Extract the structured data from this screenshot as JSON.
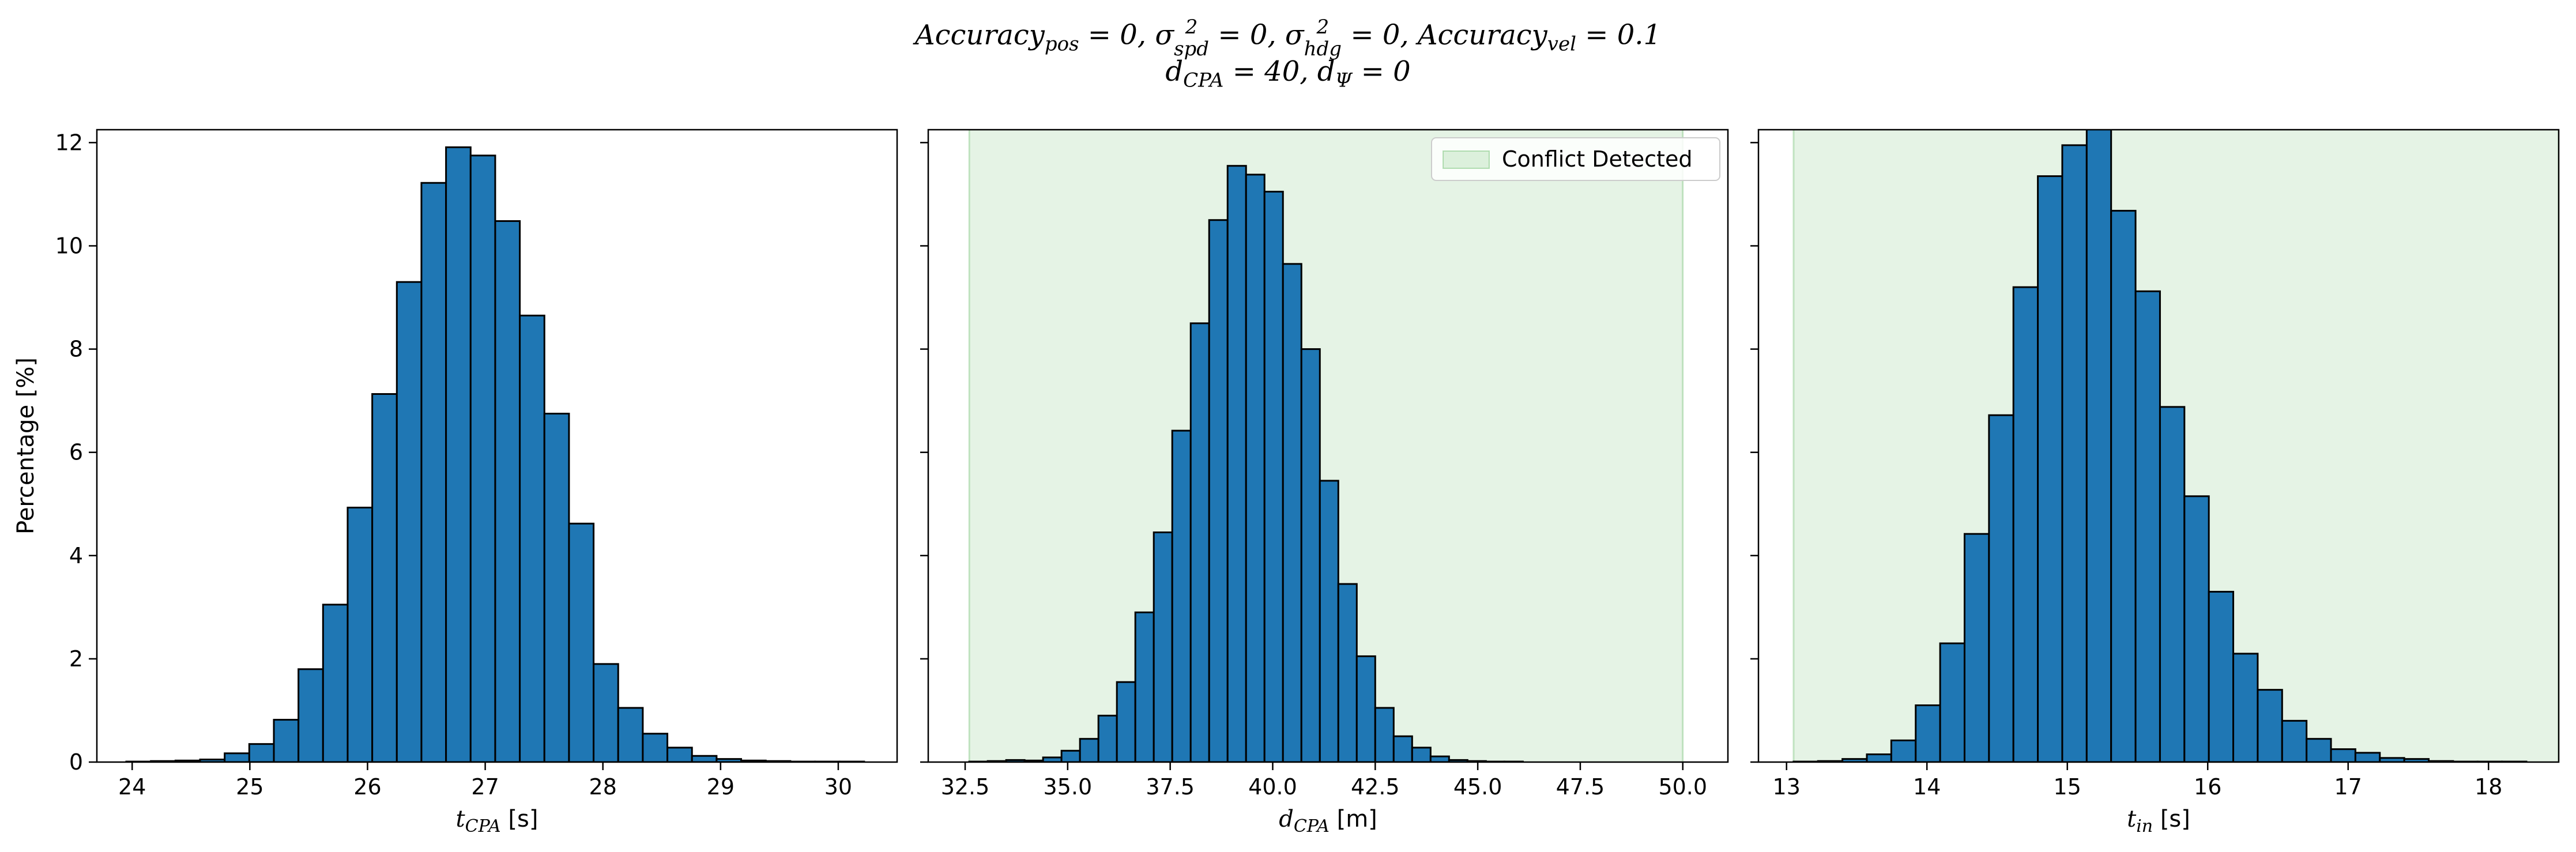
{
  "title_lines": [
    "Accuracy_pos = 0, σ²_spd = 0, σ²_hdg = 0, Accuracy_vel = 0.1",
    "d_CPA = 40, d_Ψ = 0"
  ],
  "colors": {
    "bar": "#1f77b4",
    "edge": "#000000",
    "shade": "#2ca02c"
  },
  "chart_data": [
    {
      "type": "bar",
      "title": "",
      "xlabel": "t_CPA [s]",
      "ylabel": "Percentage [%]",
      "xlim": [
        23.7,
        30.5
      ],
      "ylim": [
        0,
        12.25
      ],
      "xticks": [
        24,
        25,
        26,
        27,
        28,
        29,
        30
      ],
      "yticks": [
        0,
        2,
        4,
        6,
        8,
        10,
        12
      ],
      "bin_start": 23.95,
      "bin_width": 0.209,
      "values": [
        0.01,
        0.02,
        0.03,
        0.05,
        0.17,
        0.35,
        0.82,
        1.8,
        3.05,
        4.93,
        7.13,
        9.3,
        11.22,
        11.91,
        11.75,
        10.48,
        8.65,
        6.75,
        4.62,
        1.9,
        1.05,
        0.55,
        0.28,
        0.12,
        0.06,
        0.03,
        0.02,
        0.01,
        0.01,
        0.01
      ],
      "legend": null,
      "grid": false
    },
    {
      "type": "bar",
      "title": "",
      "xlabel": "d_CPA [m]",
      "ylabel": "",
      "xlim": [
        31.6,
        51.1
      ],
      "ylim": [
        0,
        12.25
      ],
      "xticks": [
        32.5,
        35.0,
        37.5,
        40.0,
        42.5,
        45.0,
        47.5,
        50.0
      ],
      "xtick_decimals": 1,
      "yticks": [
        0,
        2,
        4,
        6,
        8,
        10,
        12
      ],
      "bin_start": 32.6,
      "bin_width": 0.45,
      "values": [
        0.01,
        0.02,
        0.04,
        0.03,
        0.09,
        0.22,
        0.45,
        0.9,
        1.55,
        2.9,
        4.45,
        6.42,
        8.5,
        10.5,
        11.55,
        11.38,
        11.05,
        9.65,
        8.0,
        5.45,
        3.45,
        2.05,
        1.05,
        0.5,
        0.28,
        0.11,
        0.04,
        0.02,
        0.01,
        0.01
      ],
      "shaded_region": [
        32.6,
        50.0
      ],
      "legend": {
        "label": "Conflict Detected",
        "location": "upper right"
      },
      "grid": false
    },
    {
      "type": "bar",
      "title": "",
      "xlabel": "t_in [s]",
      "ylabel": "",
      "xlim": [
        12.8,
        18.5
      ],
      "ylim": [
        0,
        12.25
      ],
      "xticks": [
        13,
        14,
        15,
        16,
        17,
        18
      ],
      "yticks": [
        0,
        2,
        4,
        6,
        8,
        10,
        12
      ],
      "bin_start": 13.05,
      "bin_width": 0.174,
      "values": [
        0.01,
        0.02,
        0.06,
        0.15,
        0.42,
        1.1,
        2.3,
        4.42,
        6.72,
        9.2,
        11.35,
        11.95,
        12.6,
        10.68,
        9.12,
        6.88,
        5.15,
        3.3,
        2.1,
        1.4,
        0.8,
        0.45,
        0.25,
        0.18,
        0.08,
        0.06,
        0.02,
        0.01,
        0.01,
        0.01
      ],
      "shaded_region": [
        13.05,
        18.5
      ],
      "legend": null,
      "grid": false
    }
  ]
}
